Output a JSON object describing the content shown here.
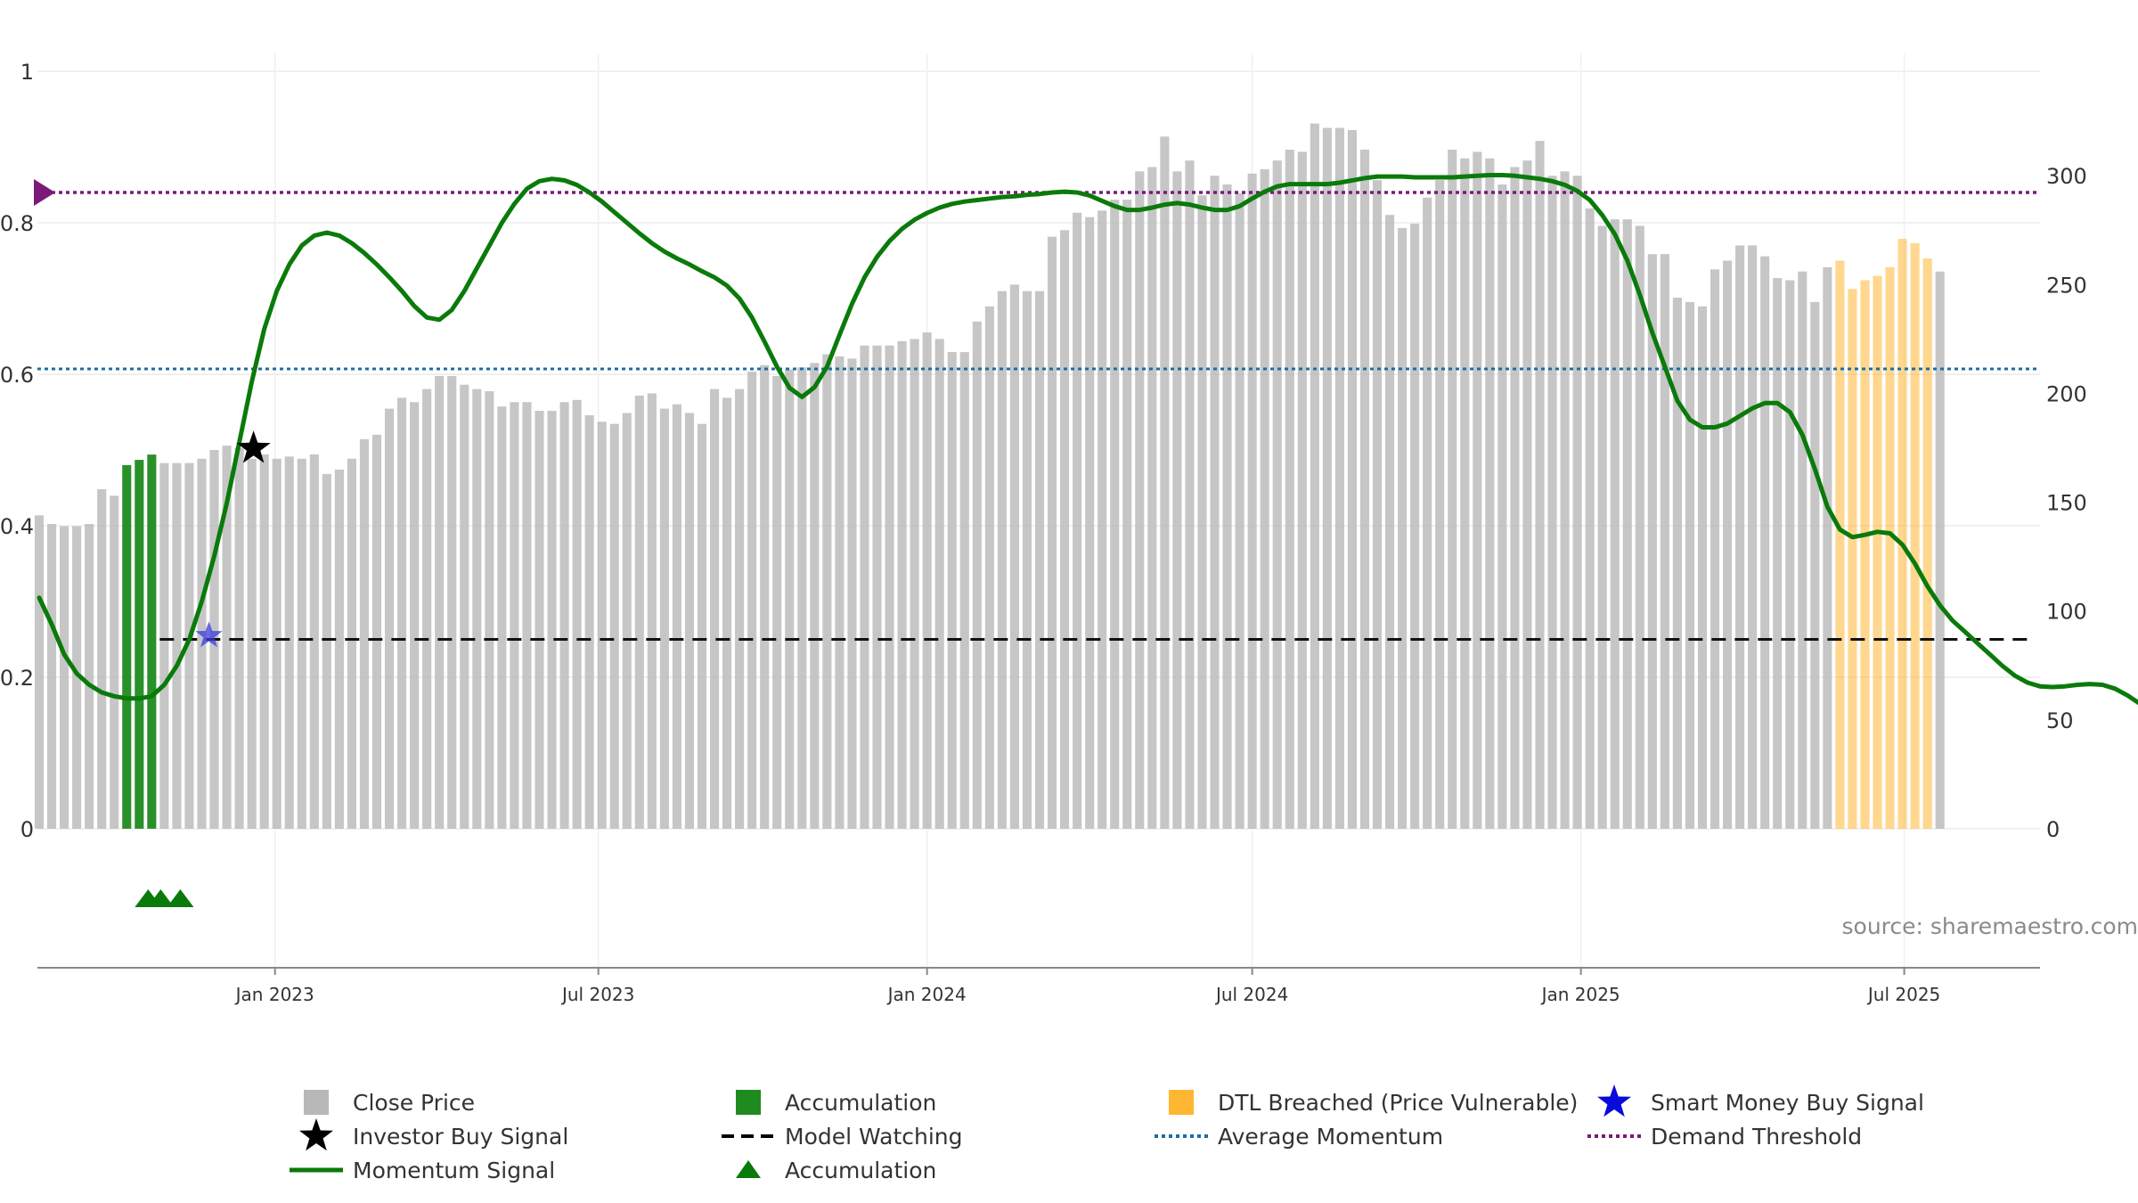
{
  "chart_data": {
    "type": "bar",
    "title": "",
    "source": "source: sharemaestro.com",
    "y_left": {
      "ticks": [
        0,
        0.2,
        0.4,
        0.6,
        0.8,
        1
      ],
      "tick_labels": [
        "0",
        "0.2",
        "0.4",
        "0.6",
        "0.8",
        "1"
      ],
      "range": [
        0,
        1
      ]
    },
    "y_right": {
      "ticks": [
        0,
        50,
        100,
        150,
        200,
        250,
        300
      ],
      "tick_labels": [
        "0",
        "50",
        "100",
        "150",
        "200",
        "250",
        "300"
      ],
      "range": [
        0,
        348
      ]
    },
    "x_axis": {
      "start": "2022-08-21",
      "end": "2025-09-15",
      "ticks": [
        {
          "date": "2023-01-01",
          "label": "Jan 2023"
        },
        {
          "date": "2023-07-01",
          "label": "Jul 2023"
        },
        {
          "date": "2024-01-01",
          "label": "Jan 2024"
        },
        {
          "date": "2024-07-01",
          "label": "Jul 2024"
        },
        {
          "date": "2025-01-01",
          "label": "Jan 2025"
        },
        {
          "date": "2025-07-01",
          "label": "Jul 2025"
        }
      ]
    },
    "grid": true,
    "legend_position": "bottom",
    "series": [
      {
        "name": "Close Price",
        "color": "#b8b8b8"
      },
      {
        "name": "Accumulation",
        "color": "#1f8b1f"
      },
      {
        "name": "DTL Breached (Price Vulnerable)",
        "color": "#ffb733"
      },
      {
        "name": "Smart Money Buy Signal",
        "color": "#0a0adc"
      },
      {
        "name": "Investor Buy Signal",
        "color": "#000000"
      },
      {
        "name": "Model Watching",
        "color": "#000000"
      },
      {
        "name": "Average Momentum",
        "color": "#1a6fa0"
      },
      {
        "name": "Demand Threshold",
        "color": "#7a1a7a"
      },
      {
        "name": "Momentum Signal",
        "color": "#0a7a0a"
      },
      {
        "name": "Accumulation",
        "color": "#0a7a0a"
      }
    ],
    "weekly": {
      "start": "2022-08-22",
      "close": [
        144,
        140,
        139,
        139,
        140,
        156,
        153,
        165,
        166,
        170,
        168,
        168,
        168,
        170,
        174,
        176,
        175,
        170,
        172,
        170,
        171,
        170,
        172,
        163,
        165,
        170,
        179,
        181,
        193,
        198,
        196,
        202,
        208,
        208,
        204,
        202,
        201,
        194,
        196,
        196,
        192,
        192,
        196,
        197,
        190,
        187,
        186,
        191,
        199,
        200,
        193,
        195,
        191,
        186,
        202,
        198,
        202,
        210,
        213,
        208,
        211,
        212,
        214,
        218,
        217,
        216,
        222,
        222,
        222,
        224,
        225,
        228,
        225,
        219,
        219,
        233,
        240,
        247,
        250,
        247,
        247,
        272,
        275,
        283,
        281,
        284,
        289,
        289,
        302,
        304,
        318,
        302,
        307,
        291,
        300,
        296,
        292,
        301,
        303,
        307,
        312,
        311,
        324,
        322,
        322,
        321,
        312,
        298,
        282,
        276,
        278,
        290,
        298,
        312,
        308,
        311,
        308,
        296,
        304,
        307,
        316,
        300,
        302,
        300,
        285,
        277,
        280,
        280,
        277,
        264,
        264,
        244,
        242,
        240,
        257,
        261,
        268,
        268,
        263,
        253,
        252,
        256,
        242,
        258,
        261,
        248,
        252,
        254,
        258,
        271,
        269,
        262,
        256
      ],
      "dtl": [
        [
          144,
          151
        ],
        [
          153,
          165
        ],
        [
          177,
          186
        ],
        [
          201,
          214
        ]
      ],
      "acc": [
        7,
        8,
        9
      ],
      "momentum": [
        0.305,
        0.27,
        0.23,
        0.205,
        0.19,
        0.18,
        0.175,
        0.172,
        0.172,
        0.175,
        0.19,
        0.215,
        0.25,
        0.3,
        0.36,
        0.43,
        0.51,
        0.59,
        0.66,
        0.71,
        0.745,
        0.77,
        0.783,
        0.787,
        0.783,
        0.773,
        0.76,
        0.745,
        0.728,
        0.71,
        0.69,
        0.675,
        0.672,
        0.685,
        0.71,
        0.74,
        0.77,
        0.8,
        0.825,
        0.845,
        0.855,
        0.858,
        0.856,
        0.85,
        0.84,
        0.828,
        0.814,
        0.8,
        0.786,
        0.773,
        0.762,
        0.753,
        0.745,
        0.736,
        0.728,
        0.717,
        0.7,
        0.675,
        0.643,
        0.61,
        0.582,
        0.57,
        0.583,
        0.61,
        0.652,
        0.693,
        0.728,
        0.755,
        0.776,
        0.792,
        0.804,
        0.813,
        0.82,
        0.825,
        0.828,
        0.83,
        0.832,
        0.834,
        0.835,
        0.837,
        0.838,
        0.84,
        0.841,
        0.84,
        0.836,
        0.829,
        0.822,
        0.817,
        0.817,
        0.82,
        0.824,
        0.826,
        0.824,
        0.82,
        0.817,
        0.817,
        0.822,
        0.832,
        0.841,
        0.848,
        0.851,
        0.851,
        0.851,
        0.851,
        0.853,
        0.856,
        0.859,
        0.861,
        0.861,
        0.861,
        0.86,
        0.86,
        0.86,
        0.86,
        0.861,
        0.862,
        0.863,
        0.863,
        0.862,
        0.86,
        0.858,
        0.855,
        0.85,
        0.842,
        0.83,
        0.81,
        0.785,
        0.75,
        0.705,
        0.655,
        0.61,
        0.565,
        0.54,
        0.53,
        0.53,
        0.535,
        0.545,
        0.555,
        0.562,
        0.562,
        0.55,
        0.52,
        0.475,
        0.425,
        0.395,
        0.385,
        0.388,
        0.392,
        0.39,
        0.375,
        0.35,
        0.32,
        0.295,
        0.275,
        0.26,
        0.245,
        0.23,
        0.215,
        0.202,
        0.193,
        0.188,
        0.187,
        0.188,
        0.19,
        0.191,
        0.19,
        0.185,
        0.176,
        0.165,
        0.155,
        0.148,
        0.144,
        0.143,
        0.143,
        0.143,
        0.12,
        0.128,
        0.145,
        0.152,
        0.16,
        0.165,
        0.168
      ]
    },
    "thresholds": {
      "demand_threshold": 0.84,
      "average_momentum": 0.607,
      "model_watching": 0.25
    },
    "investor_buy_signal": {
      "date": "2022-12-20",
      "value": 0.502
    },
    "smart_money_buy_signal": {
      "date": "2022-11-25",
      "value": 0.255
    },
    "accumulation_markers": [
      "2022-10-22",
      "2022-10-29",
      "2022-11-09"
    ]
  },
  "legend": {
    "close_price": "Close Price",
    "accumulation": "Accumulation",
    "dtl": "DTL Breached (Price Vulnerable)",
    "smart_money": "Smart Money Buy Signal",
    "investor_buy": "Investor Buy Signal",
    "model_watching": "Model Watching",
    "avg_momentum": "Average Momentum",
    "demand_threshold": "Demand Threshold",
    "momentum_signal": "Momentum Signal",
    "accumulation_marker": "Accumulation"
  }
}
